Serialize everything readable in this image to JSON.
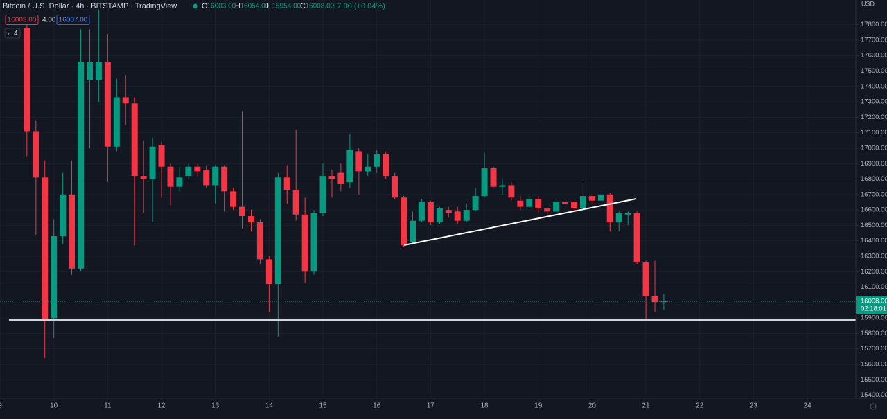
{
  "chart_data": {
    "type": "candlestick",
    "title": "Bitcoin / U.S. Dollar · 4h · BITSTAMP · TradingView",
    "ohlc": [
      {
        "label": "O",
        "value": "16003.00"
      },
      {
        "label": "H",
        "value": "16054.00"
      },
      {
        "label": "L",
        "value": "15954.00"
      },
      {
        "label": "C",
        "value": "16008.00"
      }
    ],
    "change": "+7.00 (+0.04%)",
    "order_boxes": [
      "16003.00",
      "4.00",
      "16007.00"
    ],
    "indicator": "4",
    "currency": "USD",
    "up_color": "#089981",
    "down_color": "#f23645",
    "grid": true,
    "last_price": {
      "value": 16008,
      "label": "16008.00"
    },
    "countdown": "02:18:01",
    "xlim": [
      9,
      24.9
    ],
    "ylim": [
      15380,
      17960
    ],
    "xticks": [
      9,
      10,
      11,
      12,
      13,
      14,
      15,
      16,
      17,
      18,
      19,
      20,
      21,
      22,
      23,
      24
    ],
    "yticks": [
      {
        "value": 17800,
        "label": "17800.00"
      },
      {
        "value": 17700,
        "label": "17700.00"
      },
      {
        "value": 17600,
        "label": "17600.00"
      },
      {
        "value": 17500,
        "label": "17500.00"
      },
      {
        "value": 17400,
        "label": "17400.00"
      },
      {
        "value": 17300,
        "label": "17300.00"
      },
      {
        "value": 17200,
        "label": "17200.00"
      },
      {
        "value": 17100,
        "label": "17100.00"
      },
      {
        "value": 17000,
        "label": "17000.00"
      },
      {
        "value": 16900,
        "label": "16900.00"
      },
      {
        "value": 16800,
        "label": "16800.00"
      },
      {
        "value": 16700,
        "label": "16700.00"
      },
      {
        "value": 16600,
        "label": "16600.00"
      },
      {
        "value": 16500,
        "label": "16500.00"
      },
      {
        "value": 16400,
        "label": "16400.00"
      },
      {
        "value": 16300,
        "label": "16300.00"
      },
      {
        "value": 16200,
        "label": "16200.00"
      },
      {
        "value": 16100,
        "label": "16100.00"
      },
      {
        "value": 16000,
        "label": "16000.00"
      },
      {
        "value": 15900,
        "label": "15900.00"
      },
      {
        "value": 15800,
        "label": "15800.00"
      },
      {
        "value": 15700,
        "label": "15700.00"
      },
      {
        "value": 15600,
        "label": "15600.00"
      },
      {
        "value": 15500,
        "label": "15500.00"
      },
      {
        "value": 15400,
        "label": "15400.00"
      }
    ],
    "x": [
      9.5,
      9.667,
      9.833,
      10,
      10.167,
      10.333,
      10.5,
      10.667,
      10.833,
      11,
      11.167,
      11.333,
      11.5,
      11.667,
      11.833,
      12,
      12.167,
      12.333,
      12.5,
      12.667,
      12.833,
      13,
      13.167,
      13.333,
      13.5,
      13.667,
      13.833,
      14,
      14.167,
      14.333,
      14.5,
      14.667,
      14.833,
      15,
      15.167,
      15.333,
      15.5,
      15.667,
      15.833,
      16,
      16.167,
      16.333,
      16.5,
      16.667,
      16.833,
      17,
      17.167,
      17.333,
      17.5,
      17.667,
      17.833,
      18,
      18.167,
      18.333,
      18.5,
      18.667,
      18.833,
      19,
      19.167,
      19.333,
      19.5,
      19.667,
      19.833,
      20,
      20.167,
      20.333,
      20.5,
      20.667,
      20.833,
      21,
      21.167,
      21.333
    ],
    "open": [
      17780,
      17110,
      16810,
      15900,
      16430,
      16700,
      16220,
      17440,
      17440,
      17560,
      17010,
      17330,
      17290,
      16820,
      16800,
      17020,
      16880,
      16750,
      16820,
      16880,
      16860,
      16760,
      16880,
      16720,
      16620,
      16560,
      16520,
      16280,
      16120,
      16810,
      16730,
      16570,
      16200,
      16580,
      16820,
      16840,
      16780,
      16980,
      16850,
      16880,
      16960,
      16820,
      16680,
      16390,
      16530,
      16650,
      16520,
      16600,
      16590,
      16530,
      16600,
      16690,
      16870,
      16750,
      16760,
      16660,
      16620,
      16670,
      16610,
      16590,
      16650,
      16650,
      16610,
      16690,
      16660,
      16700,
      16520,
      16570,
      16580,
      16260,
      16040,
      16003
    ],
    "high": [
      17850,
      17180,
      16920,
      16540,
      16840,
      16920,
      17770,
      17770,
      17900,
      17740,
      17450,
      17470,
      17330,
      17050,
      17070,
      17040,
      16900,
      16880,
      16900,
      16900,
      16890,
      16890,
      16890,
      16740,
      17240,
      16600,
      16540,
      16300,
      16840,
      16890,
      17120,
      16680,
      16600,
      16900,
      16860,
      16900,
      17090,
      17000,
      16960,
      16990,
      16980,
      16840,
      16690,
      16590,
      16670,
      16660,
      16620,
      16620,
      16620,
      16640,
      16740,
      16970,
      16880,
      16800,
      16780,
      16690,
      16690,
      16690,
      16620,
      16660,
      16660,
      16660,
      16780,
      16700,
      16710,
      16710,
      16590,
      16590,
      16590,
      16270,
      16270,
      16054
    ],
    "low": [
      16950,
      16440,
      15640,
      15770,
      16380,
      16180,
      16200,
      17000,
      17300,
      16780,
      16980,
      17150,
      16370,
      16580,
      16520,
      16680,
      16630,
      16720,
      16800,
      16820,
      16740,
      16640,
      16590,
      16600,
      16480,
      16460,
      16250,
      15940,
      15780,
      16640,
      16530,
      16130,
      16180,
      16560,
      16680,
      16720,
      16740,
      16700,
      16820,
      16840,
      16800,
      16670,
      16360,
      16380,
      16520,
      16500,
      16510,
      16550,
      16510,
      16520,
      16590,
      16680,
      16740,
      16700,
      16660,
      16600,
      16610,
      16580,
      16560,
      16580,
      16620,
      16600,
      16600,
      16640,
      16650,
      16460,
      16460,
      16500,
      16250,
      15890,
      15940,
      15954
    ],
    "close": [
      17110,
      16810,
      15890,
      16430,
      16700,
      16220,
      17560,
      17560,
      17560,
      17010,
      17330,
      17290,
      16820,
      16800,
      17010,
      16880,
      16750,
      16810,
      16880,
      16850,
      16760,
      16880,
      16720,
      16620,
      16560,
      16520,
      16280,
      16120,
      16810,
      16730,
      16570,
      16200,
      16580,
      16820,
      16800,
      16770,
      16990,
      16850,
      16880,
      16960,
      16820,
      16680,
      16370,
      16530,
      16650,
      16520,
      16610,
      16580,
      16530,
      16600,
      16690,
      16870,
      16750,
      16760,
      16680,
      16620,
      16670,
      16610,
      16590,
      16650,
      16640,
      16610,
      16690,
      16660,
      16700,
      16520,
      16580,
      16580,
      16260,
      16040,
      16003,
      16008
    ]
  }
}
